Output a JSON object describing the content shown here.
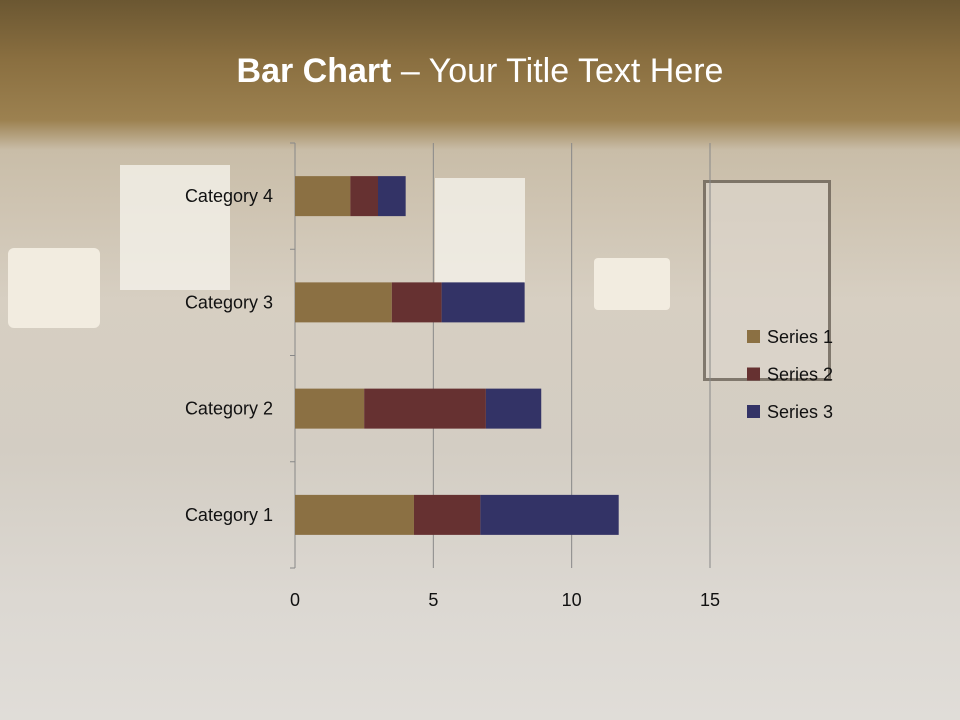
{
  "title": {
    "bold": "Bar Chart",
    "rest": " – Your Title Text Here"
  },
  "chart_data": {
    "type": "bar",
    "orientation": "horizontal",
    "stacked": true,
    "categories": [
      "Category 1",
      "Category 2",
      "Category 3",
      "Category 4"
    ],
    "series": [
      {
        "name": "Series 1",
        "values": [
          4.3,
          2.5,
          3.5,
          2
        ],
        "color": "#8b7043"
      },
      {
        "name": "Series 2",
        "values": [
          2.4,
          4.4,
          1.8,
          1
        ],
        "color": "#663131"
      },
      {
        "name": "Series 3",
        "values": [
          5,
          2,
          3,
          1
        ],
        "color": "#333366"
      }
    ],
    "xlim": [
      0,
      15
    ],
    "xticks": [
      "0",
      "5",
      "10",
      "15"
    ],
    "grid": true,
    "legend": "right"
  }
}
